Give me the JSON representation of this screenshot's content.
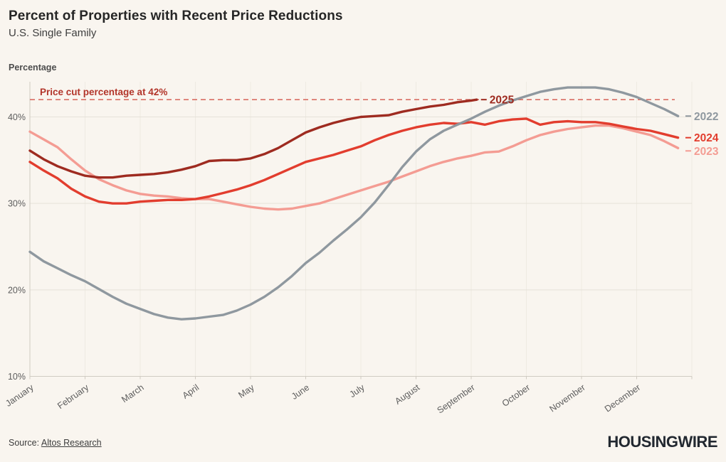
{
  "header": {
    "title": "Percent of Properties with Recent Price Reductions",
    "subtitle": "U.S. Single Family"
  },
  "footer": {
    "source_prefix": "Source: ",
    "source_link": "Altos Research",
    "logo": "HOUSINGWIRE"
  },
  "colors": {
    "background": "#f9f5ef",
    "annotation": "#b2352a",
    "dashed_line": "#d96e63",
    "axis_text": "#5d5d5d",
    "grid_h": "#e6e2d9",
    "grid_v": "#eeeae2",
    "axis_line": "#d0cbc2",
    "series_2022": "#8f989f",
    "series_2023": "#f49c93",
    "series_2024": "#e23d2e",
    "series_2025": "#9e2b20"
  },
  "chart_data": {
    "type": "line",
    "title": "Percent of Properties with Recent Price Reductions",
    "subtitle": "U.S. Single Family",
    "ylabel": "Percentage",
    "x_unit": "month index, 0 = Jan 1 through 12 = year end",
    "x_categories": [
      "January",
      "February",
      "March",
      "April",
      "May",
      "June",
      "July",
      "August",
      "September",
      "October",
      "November",
      "December"
    ],
    "y_ticks": [
      {
        "label": "40%",
        "value": 40
      },
      {
        "label": "30%",
        "value": 30
      },
      {
        "label": "20%",
        "value": 20
      },
      {
        "label": "10%",
        "value": 10
      }
    ],
    "ylim": [
      10,
      44.2
    ],
    "grid": true,
    "legend_position": "line-end-labels",
    "annotation": {
      "text": "Price cut percentage at 42%",
      "value": 42
    },
    "draw_order": [
      "2023",
      "2024",
      "2022",
      "2025"
    ],
    "series": [
      {
        "name": "2022",
        "color": "series_2022",
        "label_dy": 0,
        "points": [
          [
            0,
            24.4
          ],
          [
            0.25,
            23.3
          ],
          [
            0.5,
            22.5
          ],
          [
            0.75,
            21.7
          ],
          [
            1,
            21.0
          ],
          [
            1.25,
            20.1
          ],
          [
            1.5,
            19.2
          ],
          [
            1.75,
            18.4
          ],
          [
            2,
            17.8
          ],
          [
            2.25,
            17.2
          ],
          [
            2.5,
            16.8
          ],
          [
            2.75,
            16.6
          ],
          [
            3,
            16.7
          ],
          [
            3.25,
            16.9
          ],
          [
            3.5,
            17.1
          ],
          [
            3.75,
            17.6
          ],
          [
            4,
            18.3
          ],
          [
            4.25,
            19.2
          ],
          [
            4.5,
            20.3
          ],
          [
            4.75,
            21.6
          ],
          [
            5,
            23.1
          ],
          [
            5.25,
            24.3
          ],
          [
            5.5,
            25.7
          ],
          [
            5.75,
            27.0
          ],
          [
            6,
            28.4
          ],
          [
            6.25,
            30.1
          ],
          [
            6.5,
            32.1
          ],
          [
            6.75,
            34.2
          ],
          [
            7,
            36.0
          ],
          [
            7.25,
            37.4
          ],
          [
            7.5,
            38.4
          ],
          [
            7.75,
            39.1
          ],
          [
            8,
            39.8
          ],
          [
            8.25,
            40.6
          ],
          [
            8.5,
            41.3
          ],
          [
            8.75,
            41.9
          ],
          [
            9,
            42.4
          ],
          [
            9.25,
            42.9
          ],
          [
            9.5,
            43.2
          ],
          [
            9.75,
            43.4
          ],
          [
            10,
            43.4
          ],
          [
            10.25,
            43.4
          ],
          [
            10.5,
            43.2
          ],
          [
            10.75,
            42.8
          ],
          [
            11,
            42.3
          ],
          [
            11.25,
            41.6
          ],
          [
            11.5,
            40.9
          ],
          [
            11.75,
            40.1
          ]
        ]
      },
      {
        "name": "2023",
        "color": "series_2023",
        "label_dy": 4,
        "points": [
          [
            0,
            38.3
          ],
          [
            0.25,
            37.4
          ],
          [
            0.5,
            36.5
          ],
          [
            0.75,
            35.1
          ],
          [
            1,
            33.8
          ],
          [
            1.25,
            32.8
          ],
          [
            1.5,
            32.1
          ],
          [
            1.75,
            31.5
          ],
          [
            2,
            31.1
          ],
          [
            2.25,
            30.9
          ],
          [
            2.5,
            30.8
          ],
          [
            2.75,
            30.6
          ],
          [
            3,
            30.5
          ],
          [
            3.25,
            30.5
          ],
          [
            3.5,
            30.2
          ],
          [
            3.75,
            29.9
          ],
          [
            4,
            29.6
          ],
          [
            4.25,
            29.4
          ],
          [
            4.5,
            29.3
          ],
          [
            4.75,
            29.4
          ],
          [
            5,
            29.7
          ],
          [
            5.25,
            30.0
          ],
          [
            5.5,
            30.5
          ],
          [
            5.75,
            31.0
          ],
          [
            6,
            31.5
          ],
          [
            6.25,
            32.0
          ],
          [
            6.5,
            32.5
          ],
          [
            6.75,
            33.1
          ],
          [
            7,
            33.7
          ],
          [
            7.25,
            34.3
          ],
          [
            7.5,
            34.8
          ],
          [
            7.75,
            35.2
          ],
          [
            8,
            35.5
          ],
          [
            8.25,
            35.9
          ],
          [
            8.5,
            36.0
          ],
          [
            8.75,
            36.6
          ],
          [
            9,
            37.3
          ],
          [
            9.25,
            37.9
          ],
          [
            9.5,
            38.3
          ],
          [
            9.75,
            38.6
          ],
          [
            10,
            38.8
          ],
          [
            10.25,
            39.0
          ],
          [
            10.5,
            39.0
          ],
          [
            10.75,
            38.7
          ],
          [
            11,
            38.3
          ],
          [
            11.25,
            37.9
          ],
          [
            11.5,
            37.2
          ],
          [
            11.75,
            36.4
          ]
        ]
      },
      {
        "name": "2024",
        "color": "series_2024",
        "label_dy": 0,
        "points": [
          [
            0,
            34.8
          ],
          [
            0.25,
            33.8
          ],
          [
            0.5,
            32.9
          ],
          [
            0.75,
            31.7
          ],
          [
            1,
            30.8
          ],
          [
            1.25,
            30.2
          ],
          [
            1.5,
            30.0
          ],
          [
            1.75,
            30.0
          ],
          [
            2,
            30.2
          ],
          [
            2.25,
            30.3
          ],
          [
            2.5,
            30.4
          ],
          [
            2.75,
            30.4
          ],
          [
            3,
            30.5
          ],
          [
            3.25,
            30.8
          ],
          [
            3.5,
            31.2
          ],
          [
            3.75,
            31.6
          ],
          [
            4,
            32.1
          ],
          [
            4.25,
            32.7
          ],
          [
            4.5,
            33.4
          ],
          [
            4.75,
            34.1
          ],
          [
            5,
            34.8
          ],
          [
            5.25,
            35.2
          ],
          [
            5.5,
            35.6
          ],
          [
            5.75,
            36.1
          ],
          [
            6,
            36.6
          ],
          [
            6.25,
            37.3
          ],
          [
            6.5,
            37.9
          ],
          [
            6.75,
            38.4
          ],
          [
            7,
            38.8
          ],
          [
            7.25,
            39.1
          ],
          [
            7.5,
            39.3
          ],
          [
            7.75,
            39.2
          ],
          [
            8,
            39.4
          ],
          [
            8.25,
            39.1
          ],
          [
            8.5,
            39.5
          ],
          [
            8.75,
            39.7
          ],
          [
            9,
            39.8
          ],
          [
            9.25,
            39.1
          ],
          [
            9.5,
            39.4
          ],
          [
            9.75,
            39.5
          ],
          [
            10,
            39.4
          ],
          [
            10.25,
            39.4
          ],
          [
            10.5,
            39.2
          ],
          [
            10.75,
            38.9
          ],
          [
            11,
            38.6
          ],
          [
            11.25,
            38.4
          ],
          [
            11.5,
            38.0
          ],
          [
            11.75,
            37.6
          ]
        ]
      },
      {
        "name": "2025",
        "color": "series_2025",
        "label_at_line_end": true,
        "label_dy": 0,
        "points": [
          [
            0,
            36.1
          ],
          [
            0.25,
            35.1
          ],
          [
            0.5,
            34.3
          ],
          [
            0.75,
            33.7
          ],
          [
            1,
            33.2
          ],
          [
            1.25,
            33.0
          ],
          [
            1.5,
            33.0
          ],
          [
            1.75,
            33.2
          ],
          [
            2,
            33.3
          ],
          [
            2.25,
            33.4
          ],
          [
            2.5,
            33.6
          ],
          [
            2.75,
            33.9
          ],
          [
            3,
            34.3
          ],
          [
            3.25,
            34.9
          ],
          [
            3.5,
            35.0
          ],
          [
            3.75,
            35.0
          ],
          [
            4,
            35.2
          ],
          [
            4.25,
            35.7
          ],
          [
            4.5,
            36.4
          ],
          [
            4.75,
            37.3
          ],
          [
            5,
            38.2
          ],
          [
            5.25,
            38.8
          ],
          [
            5.5,
            39.3
          ],
          [
            5.75,
            39.7
          ],
          [
            6,
            40.0
          ],
          [
            6.25,
            40.1
          ],
          [
            6.5,
            40.2
          ],
          [
            6.75,
            40.6
          ],
          [
            7,
            40.9
          ],
          [
            7.25,
            41.2
          ],
          [
            7.5,
            41.4
          ],
          [
            7.75,
            41.7
          ],
          [
            8,
            41.9
          ],
          [
            8.1,
            42.0
          ]
        ]
      }
    ]
  }
}
